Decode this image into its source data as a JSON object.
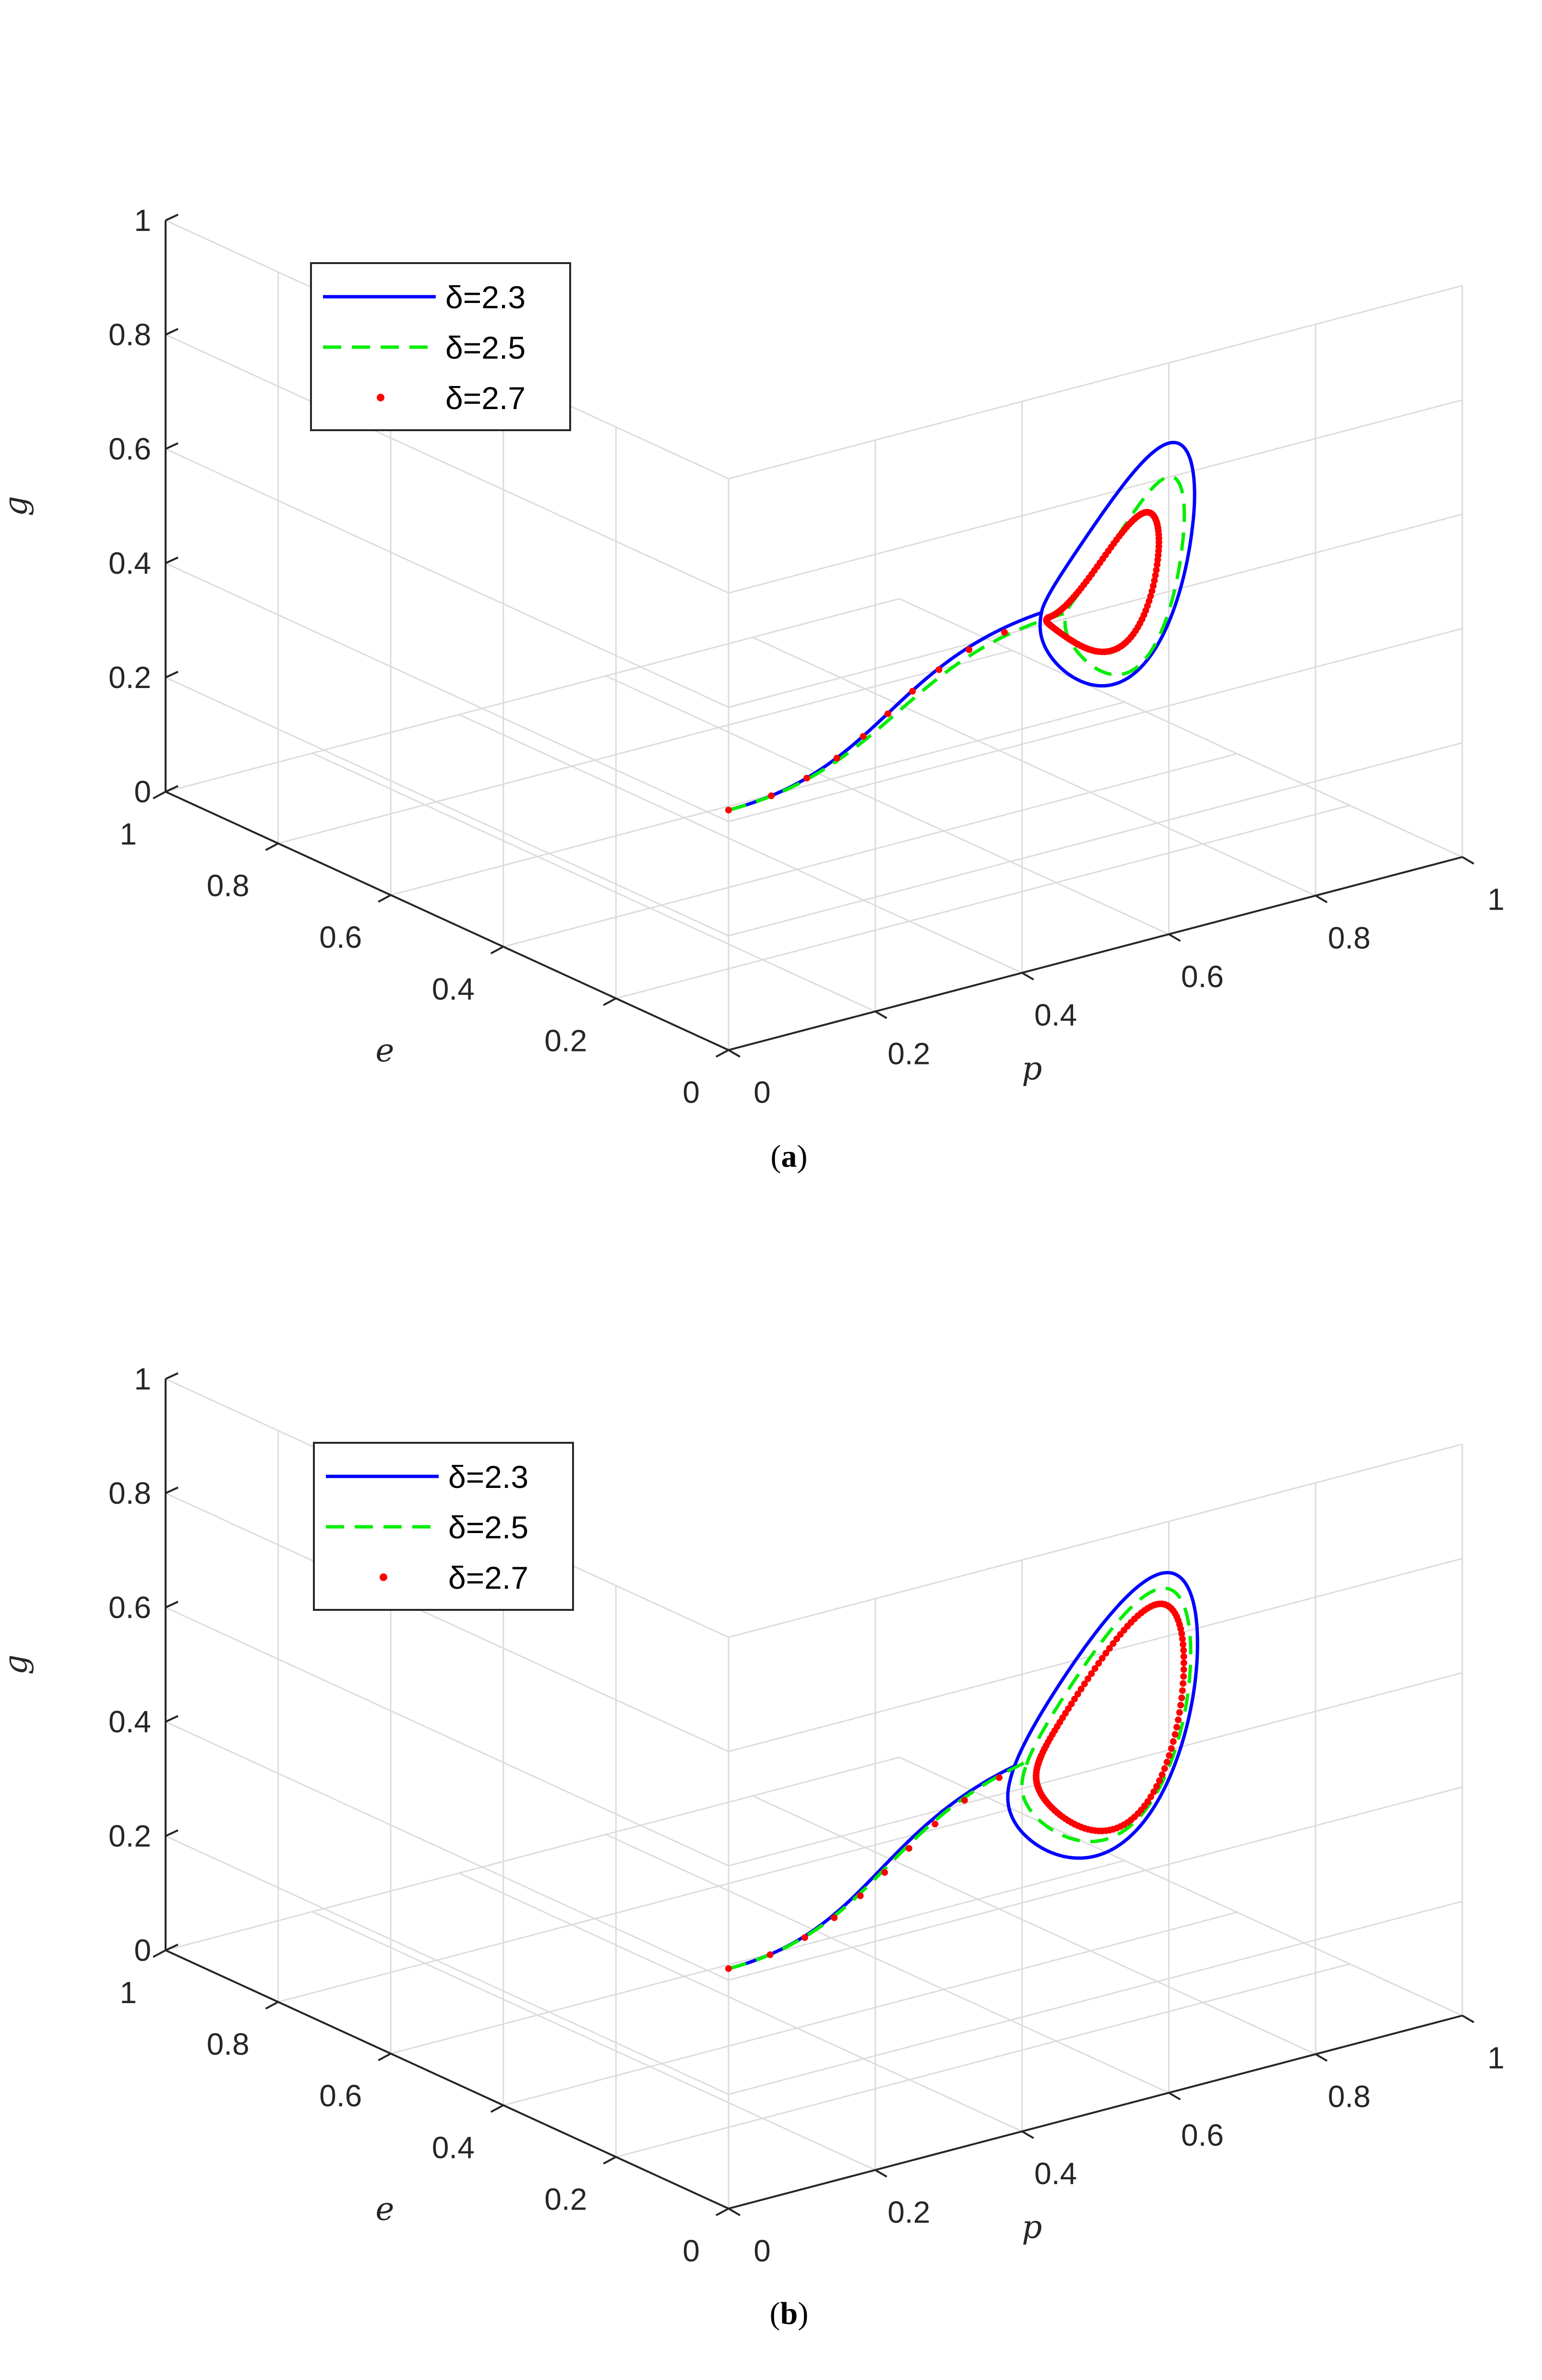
{
  "chart_data": [
    {
      "type": "line3d",
      "panel_label": "a",
      "xlabel": "p",
      "ylabel": "e",
      "zlabel": "g",
      "xlim": [
        0,
        1
      ],
      "ylim": [
        0,
        1
      ],
      "zlim": [
        0,
        1
      ],
      "xticks": [
        "0",
        "0.2",
        "0.4",
        "0.6",
        "0.8",
        "1"
      ],
      "yticks": [
        "0",
        "0.2",
        "0.4",
        "0.6",
        "0.8",
        "1"
      ],
      "zticks": [
        "0",
        "0.2",
        "0.4",
        "0.6",
        "0.8",
        "1"
      ],
      "grid": true,
      "legend_position": "top-left",
      "series": [
        {
          "name": "δ=2.3",
          "style": "solid",
          "color": "#0000ff",
          "start": [
            0.0,
            0.0,
            0.42
          ],
          "center": [
            0.76,
            0.3,
            0.45
          ],
          "cycle": {
            "rp": 0.14,
            "re": 0.06,
            "amp_up": 0.38,
            "amp_down": 0.44,
            "phase": 3.2
          }
        },
        {
          "name": "δ=2.5",
          "style": "dashed",
          "color": "#00ee00",
          "start": [
            0.0,
            0.0,
            0.42
          ],
          "center": [
            0.77,
            0.3,
            0.43
          ],
          "cycle": {
            "rp": 0.11,
            "re": 0.05,
            "amp_up": 0.29,
            "amp_down": 0.36,
            "phase": 3.2
          }
        },
        {
          "name": "δ=2.7",
          "style": "dotted-markers",
          "color": "#ff0000",
          "start": [
            0.0,
            0.0,
            0.42
          ],
          "center": [
            0.74,
            0.3,
            0.42
          ],
          "cycle": {
            "rp": 0.1,
            "re": 0.04,
            "amp_up": 0.19,
            "amp_down": 0.23,
            "phase": 3.2
          }
        }
      ]
    },
    {
      "type": "line3d",
      "panel_label": "b",
      "xlabel": "p",
      "ylabel": "e",
      "zlabel": "g",
      "xlim": [
        0,
        1
      ],
      "ylim": [
        0,
        1
      ],
      "zlim": [
        0,
        1
      ],
      "xticks": [
        "0",
        "0.2",
        "0.4",
        "0.6",
        "0.8",
        "1"
      ],
      "yticks": [
        "0",
        "0.2",
        "0.4",
        "0.6",
        "0.8",
        "1"
      ],
      "zticks": [
        "0",
        "0.2",
        "0.4",
        "0.6",
        "0.8",
        "1"
      ],
      "grid": true,
      "legend_position": "top-left",
      "series": [
        {
          "name": "δ=2.3",
          "style": "solid",
          "color": "#0000ff",
          "start": [
            0.0,
            0.0,
            0.42
          ],
          "center": [
            0.74,
            0.3,
            0.45
          ],
          "cycle": {
            "rp": 0.17,
            "re": 0.07,
            "amp_up": 0.5,
            "amp_down": 0.48,
            "phase": 3.0
          }
        },
        {
          "name": "δ=2.5",
          "style": "dashed",
          "color": "#00ee00",
          "start": [
            0.0,
            0.0,
            0.42
          ],
          "center": [
            0.745,
            0.3,
            0.45
          ],
          "cycle": {
            "rp": 0.15,
            "re": 0.06,
            "amp_up": 0.44,
            "amp_down": 0.42,
            "phase": 3.0
          }
        },
        {
          "name": "δ=2.7",
          "style": "dotted-markers",
          "color": "#ff0000",
          "start": [
            0.0,
            0.0,
            0.42
          ],
          "center": [
            0.75,
            0.3,
            0.45
          ],
          "cycle": {
            "rp": 0.13,
            "re": 0.05,
            "amp_up": 0.38,
            "amp_down": 0.38,
            "phase": 3.0
          }
        }
      ]
    }
  ]
}
